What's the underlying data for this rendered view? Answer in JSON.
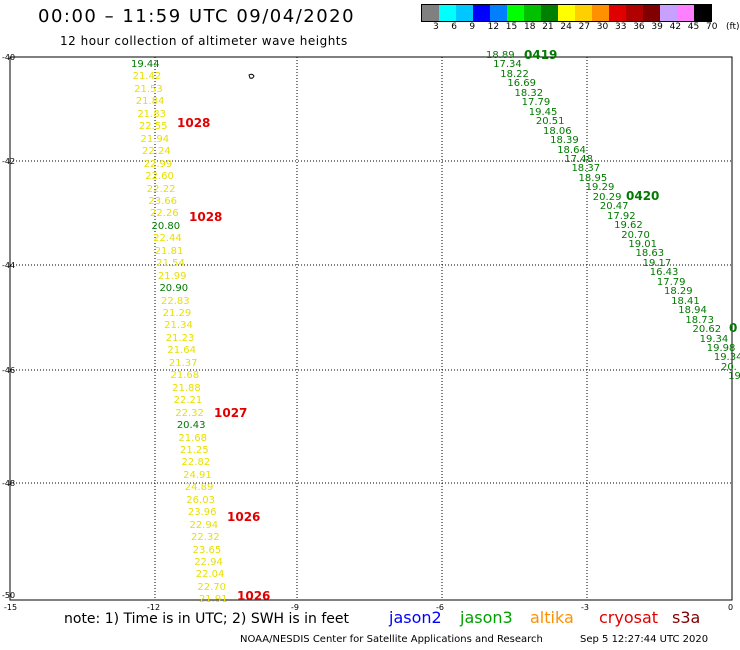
{
  "header": {
    "title": "00:00 – 11:59 UTC 09/04/2020",
    "subtitle": "12 hour collection of altimeter wave heights"
  },
  "legend": {
    "colors": [
      "#808080",
      "#00ffff",
      "#00c8ff",
      "#0000ff",
      "#0080ff",
      "#00ff00",
      "#00c000",
      "#008000",
      "#ffff00",
      "#ffd000",
      "#ff9000",
      "#e00000",
      "#b00000",
      "#800000",
      "#c8a0ff",
      "#ff80ff",
      "#000000"
    ],
    "labels": [
      "3",
      "6",
      "9",
      "12",
      "15",
      "18",
      "21",
      "24",
      "27",
      "30",
      "33",
      "36",
      "39",
      "42",
      "45",
      "70"
    ],
    "unit": "(ft)"
  },
  "axes": {
    "lat_labels": [
      "-40",
      "-42",
      "-44",
      "-46",
      "-48",
      "-50"
    ],
    "lon_labels": [
      "-15",
      "-12",
      "-9",
      "-6",
      "-3",
      "0"
    ]
  },
  "footer": {
    "note": "note:  1) Time is in UTC;  2) SWH is in feet",
    "satellites": [
      {
        "name": "jason2",
        "color": "#0000ff"
      },
      {
        "name": "jason3",
        "color": "#00a000"
      },
      {
        "name": "altika",
        "color": "#ff9000"
      },
      {
        "name": "cryosat",
        "color": "#e00000"
      },
      {
        "name": "s3a",
        "color": "#800000"
      }
    ],
    "credit": "NOAA/NESDIS Center for Satellite Applications and Research",
    "timestamp": "Sep  5 12:27:44 UTC 2020"
  },
  "track1": {
    "values": [
      "19.44",
      "21.42",
      "21.53",
      "21.84",
      "21.83",
      "22.55",
      "21.94",
      "22.24",
      "22.99",
      "22.60",
      "22.22",
      "23.66",
      "22.26",
      "20.80",
      "22.44",
      "21.81",
      "21.54",
      "21.99",
      "20.90",
      "22.83",
      "21.29",
      "21.34",
      "21.23",
      "21.64",
      "21.37",
      "21.68",
      "21.88",
      "22.21",
      "22.32",
      "20.43",
      "21.68",
      "21.25",
      "22.82",
      "24.91",
      "24.89",
      "26.03",
      "23.96",
      "22.94",
      "22.32",
      "23.65",
      "22.94",
      "22.04",
      "22.70",
      "21.91"
    ],
    "colors": [
      "g",
      "y",
      "y",
      "y",
      "y",
      "y",
      "y",
      "y",
      "y",
      "y",
      "y",
      "y",
      "y",
      "g",
      "y",
      "y",
      "y",
      "y",
      "g",
      "y",
      "y",
      "y",
      "y",
      "y",
      "y",
      "y",
      "y",
      "y",
      "y",
      "g",
      "y",
      "y",
      "y",
      "y",
      "y",
      "y",
      "y",
      "y",
      "y",
      "y",
      "y",
      "y",
      "y",
      "y"
    ],
    "labels": [
      "1028",
      "1028",
      "1027",
      "1026",
      "1026"
    ]
  },
  "track2": {
    "values": [
      "18.89",
      "17.34",
      "18.22",
      "16.69",
      "18.32",
      "17.79",
      "19.45",
      "20.51",
      "18.06",
      "18.39",
      "18.64",
      "17.48",
      "18.37",
      "18.95",
      "19.29",
      "20.29",
      "20.47",
      "17.92",
      "19.62",
      "20.70",
      "19.01",
      "18.63",
      "19.17",
      "16.43",
      "17.79",
      "18.29",
      "18.41",
      "18.94",
      "18.73",
      "20.62",
      "19.34",
      "19.98",
      "19.34",
      "20.",
      "19"
    ],
    "labels": [
      "0419",
      "0420",
      "0"
    ]
  }
}
